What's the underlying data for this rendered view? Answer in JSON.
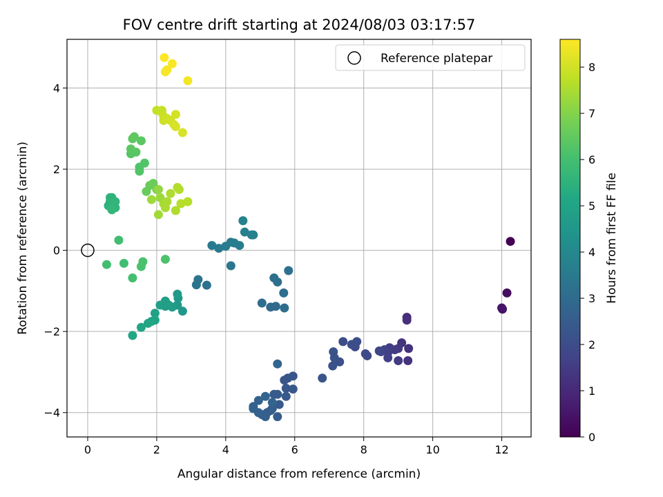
{
  "chart_data": {
    "type": "scatter",
    "title": "FOV centre drift starting at 2024/08/03 03:17:57",
    "xlabel": "Angular distance from reference (arcmin)",
    "ylabel": "Rotation from reference (arcmin)",
    "xlim": [
      -0.6,
      12.85
    ],
    "ylim": [
      -4.6,
      5.2
    ],
    "xticks": [
      0,
      2,
      4,
      6,
      8,
      10,
      12
    ],
    "yticks": [
      -4,
      -2,
      0,
      2,
      4
    ],
    "grid": true,
    "legend": {
      "position": "top-right",
      "entries": [
        {
          "label": "Reference platepar",
          "marker": "open-circle"
        }
      ]
    },
    "reference_point": {
      "x": 0,
      "y": 0
    },
    "colorbar": {
      "label": "Hours from first FF file",
      "range": [
        0,
        8.6
      ],
      "ticks": [
        0,
        1,
        2,
        3,
        4,
        5,
        6,
        7,
        8
      ],
      "colormap": "viridis"
    },
    "points": [
      [
        12.25,
        0.22,
        0.0
      ],
      [
        12.15,
        -1.05,
        0.3
      ],
      [
        12.02,
        -1.45,
        0.45
      ],
      [
        12.0,
        -1.42,
        0.5
      ],
      [
        9.25,
        -1.65,
        1.1
      ],
      [
        9.25,
        -1.72,
        1.15
      ],
      [
        9.3,
        -2.42,
        1.2
      ],
      [
        9.28,
        -2.72,
        1.3
      ],
      [
        9.1,
        -2.28,
        1.3
      ],
      [
        9.0,
        -2.42,
        1.4
      ],
      [
        9.0,
        -2.72,
        1.5
      ],
      [
        8.9,
        -2.45,
        1.5
      ],
      [
        8.75,
        -2.4,
        1.55
      ],
      [
        8.7,
        -2.52,
        1.6
      ],
      [
        8.7,
        -2.65,
        1.65
      ],
      [
        8.6,
        -2.45,
        1.7
      ],
      [
        8.5,
        -2.5,
        1.75
      ],
      [
        8.45,
        -2.48,
        1.8
      ],
      [
        8.1,
        -2.6,
        1.85
      ],
      [
        8.05,
        -2.55,
        1.9
      ],
      [
        7.75,
        -2.38,
        1.95
      ],
      [
        7.8,
        -2.25,
        2.0
      ],
      [
        7.65,
        -2.32,
        2.05
      ],
      [
        7.4,
        -2.25,
        2.05
      ],
      [
        7.3,
        -2.75,
        2.1
      ],
      [
        7.15,
        -2.65,
        2.15
      ],
      [
        7.1,
        -2.85,
        2.15
      ],
      [
        7.12,
        -2.5,
        2.2
      ],
      [
        6.8,
        -3.15,
        2.3
      ],
      [
        5.95,
        -3.1,
        2.25
      ],
      [
        5.8,
        -3.15,
        2.3
      ],
      [
        5.7,
        -3.2,
        2.3
      ],
      [
        5.95,
        -3.42,
        2.35
      ],
      [
        5.75,
        -3.4,
        2.35
      ],
      [
        5.75,
        -3.6,
        2.4
      ],
      [
        5.55,
        -3.8,
        2.4
      ],
      [
        5.5,
        -3.55,
        2.45
      ],
      [
        5.4,
        -3.55,
        2.45
      ],
      [
        5.5,
        -4.1,
        2.5
      ],
      [
        5.35,
        -3.9,
        2.5
      ],
      [
        5.3,
        -3.95,
        2.55
      ],
      [
        5.2,
        -4.0,
        2.55
      ],
      [
        5.15,
        -4.1,
        2.6
      ],
      [
        5.05,
        -4.05,
        2.6
      ],
      [
        4.95,
        -4.0,
        2.65
      ],
      [
        4.8,
        -3.85,
        2.65
      ],
      [
        4.8,
        -3.9,
        2.7
      ],
      [
        4.95,
        -3.7,
        2.7
      ],
      [
        5.15,
        -3.6,
        2.75
      ],
      [
        5.35,
        -3.75,
        2.75
      ],
      [
        5.5,
        -2.8,
        2.8
      ],
      [
        5.3,
        -1.4,
        3.0
      ],
      [
        5.45,
        -1.38,
        3.0
      ],
      [
        5.05,
        -1.3,
        3.05
      ],
      [
        5.7,
        -1.42,
        3.05
      ],
      [
        5.68,
        -1.05,
        3.1
      ],
      [
        5.4,
        -0.68,
        3.1
      ],
      [
        5.5,
        -0.78,
        3.15
      ],
      [
        5.82,
        -0.5,
        3.2
      ],
      [
        3.45,
        -0.86,
        3.25
      ],
      [
        3.15,
        -0.85,
        3.3
      ],
      [
        3.2,
        -0.72,
        3.3
      ],
      [
        4.15,
        -0.38,
        3.4
      ],
      [
        3.6,
        0.12,
        3.5
      ],
      [
        3.8,
        0.05,
        3.5
      ],
      [
        4.0,
        0.1,
        3.55
      ],
      [
        4.15,
        0.2,
        3.55
      ],
      [
        4.25,
        0.18,
        3.6
      ],
      [
        4.4,
        0.12,
        3.6
      ],
      [
        4.75,
        0.38,
        3.65
      ],
      [
        4.8,
        0.38,
        3.7
      ],
      [
        4.55,
        0.45,
        3.7
      ],
      [
        4.5,
        0.73,
        3.75
      ],
      [
        2.75,
        -1.5,
        4.55
      ],
      [
        2.6,
        -1.35,
        4.6
      ],
      [
        2.62,
        -1.18,
        4.6
      ],
      [
        2.6,
        -1.08,
        4.65
      ],
      [
        2.45,
        -1.4,
        4.7
      ],
      [
        2.35,
        -1.35,
        4.75
      ],
      [
        2.25,
        -1.38,
        4.8
      ],
      [
        2.25,
        -1.25,
        4.8
      ],
      [
        2.1,
        -1.35,
        4.85
      ],
      [
        1.95,
        -1.55,
        4.9
      ],
      [
        1.95,
        -1.72,
        4.95
      ],
      [
        1.85,
        -1.75,
        5.0
      ],
      [
        1.75,
        -1.8,
        5.0
      ],
      [
        1.55,
        -1.9,
        5.05
      ],
      [
        1.3,
        -2.1,
        5.1
      ],
      [
        0.6,
        1.1,
        5.5
      ],
      [
        0.65,
        1.2,
        5.5
      ],
      [
        0.7,
        1.3,
        5.55
      ],
      [
        0.65,
        1.3,
        5.55
      ],
      [
        0.8,
        1.05,
        5.6
      ],
      [
        0.75,
        1.12,
        5.6
      ],
      [
        0.8,
        1.2,
        5.6
      ],
      [
        0.7,
        1.0,
        5.65
      ],
      [
        1.05,
        -0.32,
        5.95
      ],
      [
        0.9,
        0.25,
        5.95
      ],
      [
        0.55,
        -0.35,
        6.0
      ],
      [
        1.3,
        -0.68,
        6.0
      ],
      [
        1.55,
        -0.4,
        6.1
      ],
      [
        1.6,
        -0.28,
        6.1
      ],
      [
        2.25,
        -0.22,
        6.15
      ],
      [
        1.5,
        2.05,
        6.2
      ],
      [
        1.5,
        1.95,
        6.25
      ],
      [
        1.65,
        2.15,
        6.25
      ],
      [
        1.25,
        2.38,
        6.3
      ],
      [
        1.4,
        2.42,
        6.35
      ],
      [
        1.25,
        2.5,
        6.4
      ],
      [
        1.55,
        2.7,
        6.4
      ],
      [
        1.3,
        2.75,
        6.45
      ],
      [
        1.35,
        2.8,
        6.45
      ],
      [
        1.7,
        1.45,
        6.6
      ],
      [
        1.8,
        1.6,
        6.6
      ],
      [
        1.9,
        1.65,
        6.65
      ],
      [
        2.0,
        1.5,
        6.7
      ],
      [
        2.05,
        1.5,
        7.2
      ],
      [
        2.1,
        1.3,
        7.3
      ],
      [
        1.85,
        1.25,
        7.35
      ],
      [
        2.05,
        0.88,
        7.4
      ],
      [
        2.2,
        1.15,
        7.45
      ],
      [
        2.25,
        1.05,
        7.5
      ],
      [
        2.3,
        1.2,
        7.5
      ],
      [
        2.4,
        1.4,
        7.55
      ],
      [
        2.55,
        0.98,
        7.55
      ],
      [
        2.65,
        1.5,
        7.6
      ],
      [
        2.6,
        1.55,
        7.6
      ],
      [
        2.7,
        1.15,
        7.65
      ],
      [
        2.9,
        1.2,
        7.65
      ],
      [
        2.0,
        3.45,
        7.8
      ],
      [
        2.15,
        3.45,
        7.85
      ],
      [
        2.15,
        3.4,
        7.85
      ],
      [
        2.2,
        3.3,
        7.9
      ],
      [
        2.2,
        3.2,
        7.95
      ],
      [
        2.3,
        3.25,
        7.95
      ],
      [
        2.4,
        3.2,
        8.0
      ],
      [
        2.5,
        3.1,
        8.05
      ],
      [
        2.55,
        3.35,
        8.05
      ],
      [
        2.55,
        3.05,
        8.1
      ],
      [
        2.75,
        2.9,
        8.1
      ],
      [
        2.9,
        4.18,
        8.45
      ],
      [
        2.25,
        4.4,
        8.5
      ],
      [
        2.3,
        4.45,
        8.5
      ],
      [
        2.45,
        4.6,
        8.55
      ],
      [
        2.22,
        4.75,
        8.6
      ]
    ]
  }
}
